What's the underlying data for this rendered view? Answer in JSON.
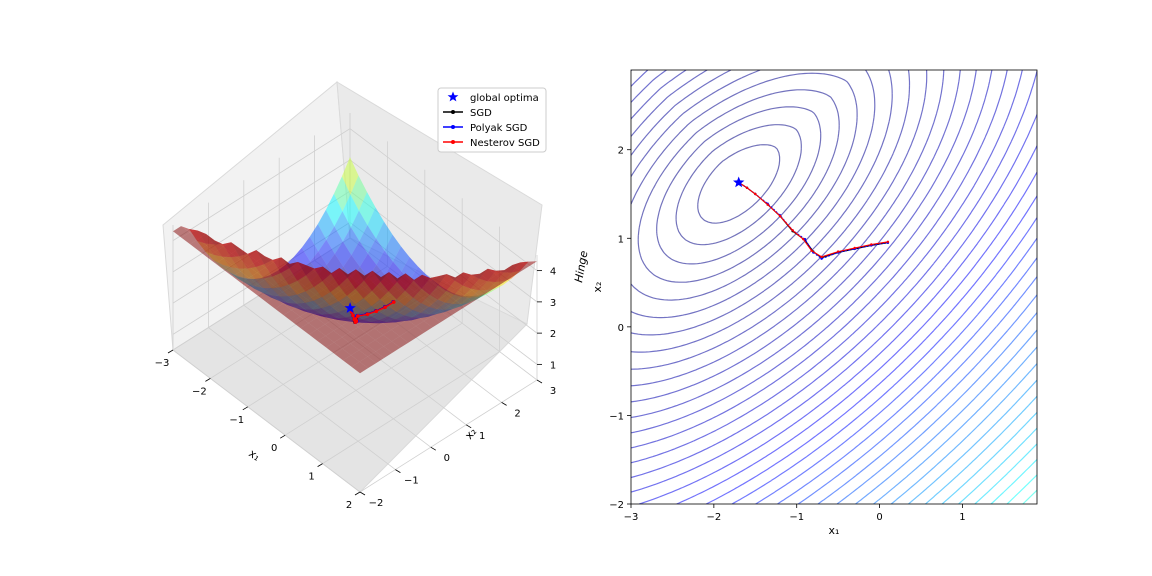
{
  "figure": {
    "background": "#ffffff"
  },
  "chart_data": [
    {
      "type": "surface3d",
      "title": "",
      "xlabel": "x₁",
      "ylabel": "x₂",
      "zlabel": "Hinge",
      "x_ticks": [
        "−3",
        "−2",
        "−1",
        "0",
        "1",
        "2"
      ],
      "y_ticks": [
        "−2",
        "−1",
        "0",
        "1",
        "2",
        "3"
      ],
      "z_ticks": [
        "1",
        "2",
        "3",
        "4"
      ],
      "xlim": [
        -3,
        2
      ],
      "ylim": [
        -2,
        3
      ],
      "zlim": [
        0.5,
        4.5
      ],
      "colormap": "jet",
      "surface_alpha": 0.5,
      "legend": {
        "placement": "upper-right",
        "entries": [
          {
            "label": "global optima",
            "marker": "star",
            "color": "#0000ff",
            "line": false
          },
          {
            "label": "SGD",
            "marker": "dot",
            "color": "#000000",
            "line": true
          },
          {
            "label": "Polyak SGD",
            "marker": "dot",
            "color": "#0000ff",
            "line": true
          },
          {
            "label": "Nesterov SGD",
            "marker": "dot",
            "color": "#ff0000",
            "line": true
          }
        ]
      },
      "global_optimum": {
        "x": -1.7,
        "y": 1.63,
        "z": 0.42
      },
      "series": [
        {
          "name": "SGD",
          "color": "#000000",
          "x": [
            0.1,
            -0.1,
            -0.3,
            -0.5,
            -0.7,
            -0.8,
            -0.9,
            -1.05,
            -1.2,
            -1.35,
            -1.5,
            -1.6,
            -1.7
          ],
          "y": [
            0.95,
            0.92,
            0.88,
            0.84,
            0.78,
            0.85,
            0.98,
            1.08,
            1.25,
            1.38,
            1.5,
            1.57,
            1.63
          ]
        },
        {
          "name": "Polyak SGD",
          "color": "#0000ff",
          "x": [
            0.1,
            -0.1,
            -0.3,
            -0.5,
            -0.7,
            -0.8,
            -0.9,
            -1.05,
            -1.2,
            -1.35,
            -1.5,
            -1.6,
            -1.7
          ],
          "y": [
            0.95,
            0.92,
            0.88,
            0.84,
            0.77,
            0.84,
            0.99,
            1.09,
            1.26,
            1.39,
            1.5,
            1.57,
            1.63
          ]
        },
        {
          "name": "Nesterov SGD",
          "color": "#ff0000",
          "x": [
            0.1,
            -0.1,
            -0.3,
            -0.5,
            -0.7,
            -0.82,
            -0.92,
            -1.05,
            -1.2,
            -1.35,
            -1.5,
            -1.6,
            -1.7
          ],
          "y": [
            0.96,
            0.93,
            0.89,
            0.85,
            0.79,
            0.86,
            0.99,
            1.09,
            1.25,
            1.38,
            1.5,
            1.57,
            1.63
          ]
        }
      ]
    },
    {
      "type": "contour",
      "title": "",
      "xlabel": "x₁",
      "ylabel": "x₂",
      "xlim": [
        -3,
        1.9
      ],
      "ylim": [
        -2,
        2.9
      ],
      "x_ticks": [
        {
          "value": -3,
          "label": "−3"
        },
        {
          "value": -2,
          "label": "−2"
        },
        {
          "value": -1,
          "label": "−1"
        },
        {
          "value": 0,
          "label": "0"
        },
        {
          "value": 1,
          "label": "1"
        }
      ],
      "y_ticks": [
        {
          "value": -2,
          "label": "−2"
        },
        {
          "value": -1,
          "label": "−1"
        },
        {
          "value": 0,
          "label": "0"
        },
        {
          "value": 1,
          "label": "1"
        },
        {
          "value": 2,
          "label": "2"
        }
      ],
      "colormap": "jet",
      "contour_alpha": 0.5,
      "global_optimum": {
        "x": -1.7,
        "y": 1.63
      },
      "series": [
        {
          "name": "SGD",
          "color": "#000000",
          "x": [
            0.1,
            -0.1,
            -0.3,
            -0.5,
            -0.7,
            -0.8,
            -0.9,
            -1.05,
            -1.2,
            -1.35,
            -1.5,
            -1.6,
            -1.7
          ],
          "y": [
            0.95,
            0.92,
            0.88,
            0.84,
            0.78,
            0.85,
            0.98,
            1.08,
            1.25,
            1.38,
            1.5,
            1.57,
            1.63
          ]
        },
        {
          "name": "Polyak SGD",
          "color": "#0000ff",
          "x": [
            0.1,
            -0.1,
            -0.3,
            -0.5,
            -0.7,
            -0.8,
            -0.9,
            -1.05,
            -1.2,
            -1.35,
            -1.5,
            -1.6,
            -1.7
          ],
          "y": [
            0.95,
            0.92,
            0.88,
            0.84,
            0.77,
            0.84,
            0.99,
            1.09,
            1.26,
            1.39,
            1.5,
            1.57,
            1.63
          ]
        },
        {
          "name": "Nesterov SGD",
          "color": "#ff0000",
          "x": [
            0.1,
            -0.1,
            -0.3,
            -0.5,
            -0.7,
            -0.82,
            -0.92,
            -1.05,
            -1.2,
            -1.35,
            -1.5,
            -1.6,
            -1.7
          ],
          "y": [
            0.96,
            0.93,
            0.89,
            0.85,
            0.79,
            0.86,
            0.99,
            1.09,
            1.25,
            1.38,
            1.5,
            1.57,
            1.63
          ]
        }
      ]
    }
  ]
}
